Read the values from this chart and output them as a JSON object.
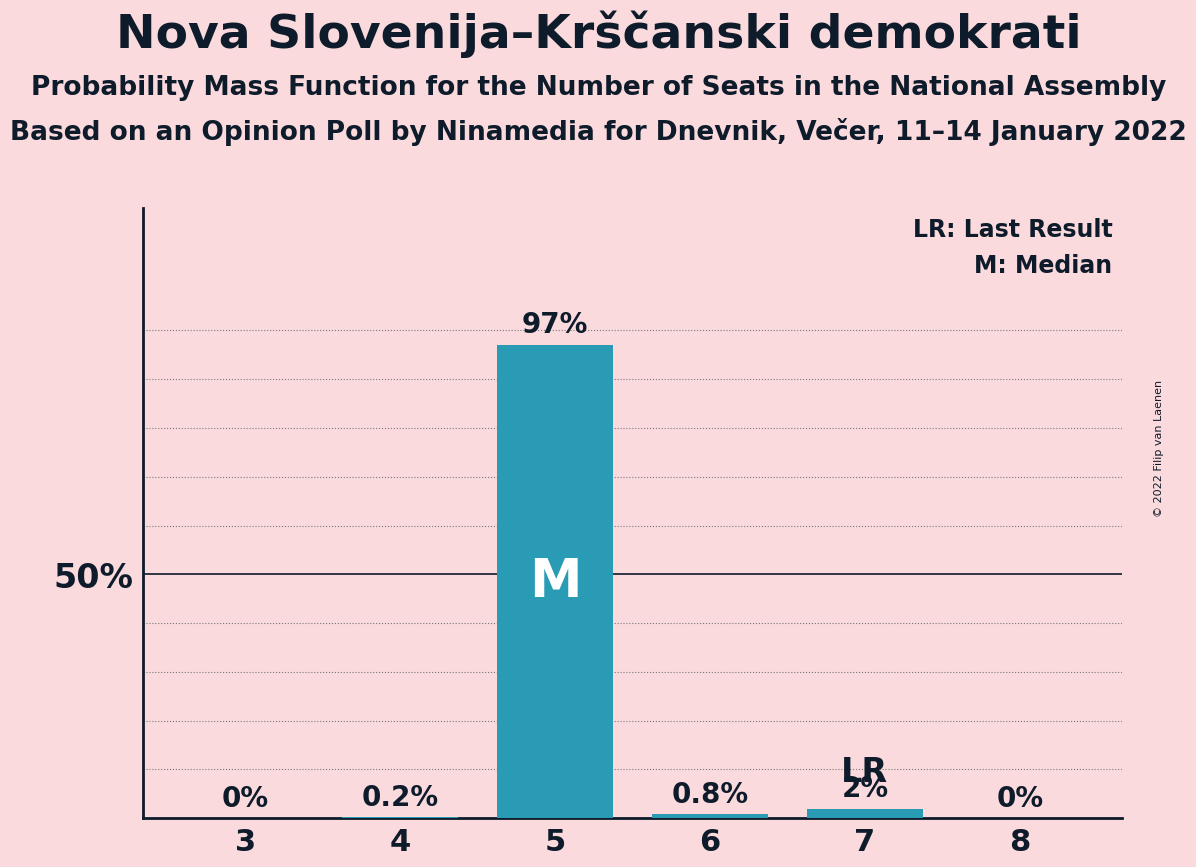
{
  "title": "Nova Slovenija–Krščanski demokrati",
  "subtitle1": "Probability Mass Function for the Number of Seats in the National Assembly",
  "subtitle2": "Based on an Opinion Poll by Ninamedia for Dnevnik, Večer, 11–14 January 2022",
  "copyright": "© 2022 Filip van Laenen",
  "categories": [
    3,
    4,
    5,
    6,
    7,
    8
  ],
  "values": [
    0.0,
    0.002,
    0.97,
    0.008,
    0.02,
    0.0
  ],
  "bar_labels": [
    "0%",
    "0.2%",
    "97%",
    "0.8%",
    "2%",
    "0%"
  ],
  "bar_color": "#2A9BB5",
  "background_color": "#FADADD",
  "text_color": "#0D1B2A",
  "median_seat": 5,
  "lr_seat": 7,
  "ylim": [
    0,
    1.25
  ],
  "grid_ticks": [
    0.1,
    0.2,
    0.3,
    0.4,
    0.6,
    0.7,
    0.8,
    0.9,
    1.0
  ],
  "solid_line_at": 0.5,
  "ylabel_shown": "50%",
  "ylabel_at": 0.5,
  "legend_lr": "LR: Last Result",
  "legend_m": "M: Median",
  "title_fontsize": 34,
  "subtitle_fontsize": 19,
  "bar_label_fontsize": 20,
  "tick_fontsize": 22,
  "ylabel_fontsize": 24,
  "m_label_fontsize": 38,
  "lr_label_fontsize": 24,
  "legend_fontsize": 17,
  "copyright_fontsize": 8
}
